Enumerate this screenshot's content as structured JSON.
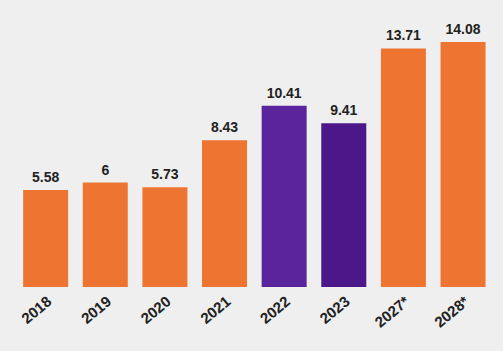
{
  "chart_data": {
    "type": "bar",
    "categories": [
      "2018",
      "2019",
      "2020",
      "2021",
      "2022",
      "2023",
      "2027*",
      "2028*"
    ],
    "values": [
      5.58,
      6,
      5.73,
      8.43,
      10.41,
      9.41,
      13.71,
      14.08
    ],
    "colors": [
      "#ee7431",
      "#ee7431",
      "#ee7431",
      "#ee7431",
      "#5a249c",
      "#4c1889",
      "#ee7431",
      "#ee7431"
    ],
    "data_labels": true,
    "tick_labels": "x"
  }
}
